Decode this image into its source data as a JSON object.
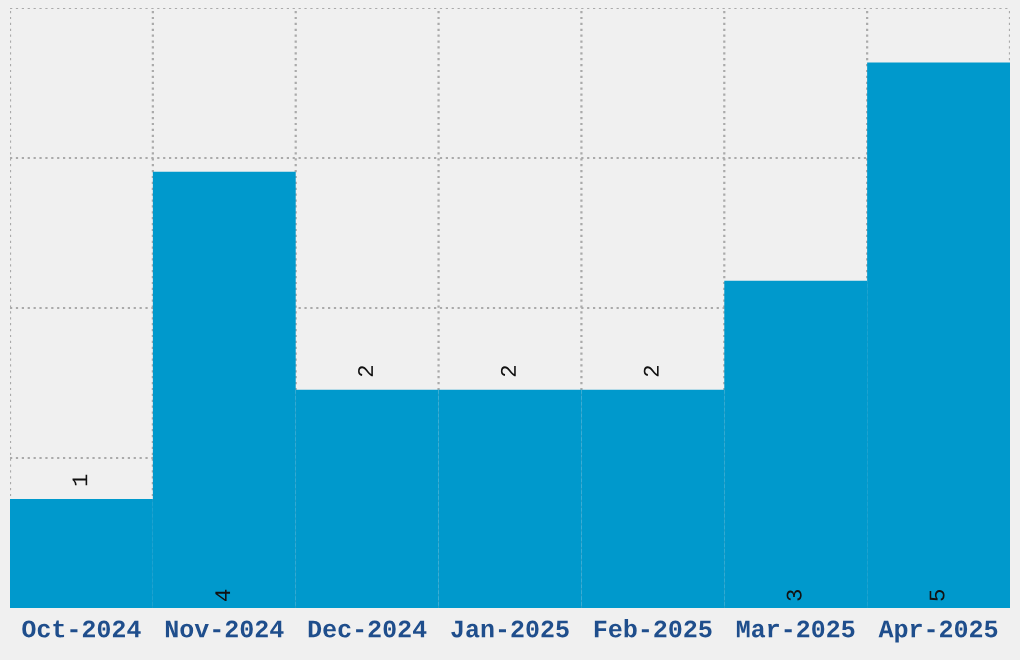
{
  "chart_data": {
    "type": "bar",
    "categories": [
      "Oct-2024",
      "Nov-2024",
      "Dec-2024",
      "Jan-2025",
      "Feb-2025",
      "Mar-2025",
      "Apr-2025"
    ],
    "values": [
      1,
      4,
      2,
      2,
      2,
      3,
      5
    ],
    "color": "#0099cc",
    "ylim": [
      0,
      5.5
    ],
    "grid": true,
    "data_labels": true,
    "tick_labels": "x"
  }
}
